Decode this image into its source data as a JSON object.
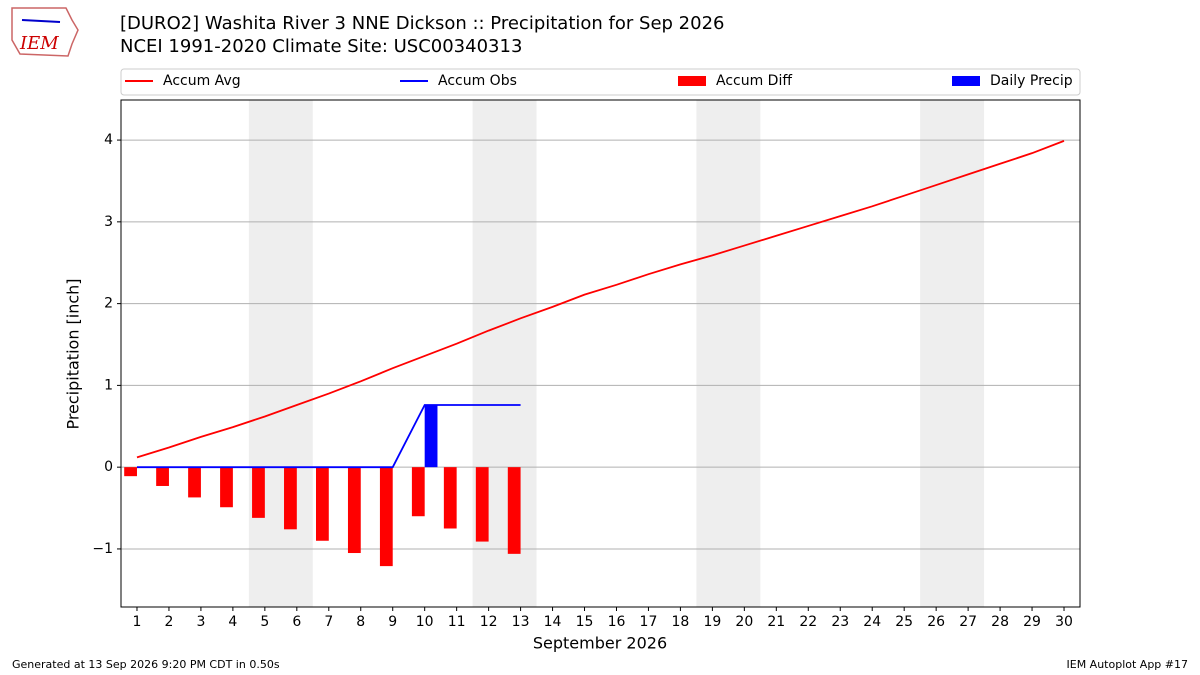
{
  "logo": "IEM",
  "footer": {
    "left": "Generated at 13 Sep 2026 9:20 PM CDT in 0.50s",
    "right": "IEM Autoplot App #17"
  },
  "chart_data": {
    "type": "line",
    "title": "[DURO2] Washita River 3 NNE Dickson :: Precipitation for Sep 2026",
    "subtitle": "NCEI 1991-2020 Climate Site: USC00340313",
    "x_label": "September 2026",
    "y_label": "Precipitation [inch]",
    "x": [
      1,
      2,
      3,
      4,
      5,
      6,
      7,
      8,
      9,
      10,
      11,
      12,
      13,
      14,
      15,
      16,
      17,
      18,
      19,
      20,
      21,
      22,
      23,
      24,
      25,
      26,
      27,
      28,
      29,
      30
    ],
    "series": [
      {
        "name": "Accum Avg",
        "kind": "line",
        "color": "#ff0000",
        "values": [
          0.12,
          0.24,
          0.37,
          0.49,
          0.62,
          0.76,
          0.9,
          1.05,
          1.21,
          1.36,
          1.51,
          1.67,
          1.82,
          1.96,
          2.11,
          2.23,
          2.36,
          2.48,
          2.59,
          2.71,
          2.83,
          2.95,
          3.07,
          3.19,
          3.32,
          3.45,
          3.58,
          3.71,
          3.84,
          3.99
        ]
      },
      {
        "name": "Accum Obs",
        "kind": "line",
        "color": "#0000ff",
        "values": [
          0,
          0,
          0,
          0,
          0,
          0,
          0,
          0,
          0,
          0.76,
          0.76,
          0.76,
          0.76,
          null,
          null,
          null,
          null,
          null,
          null,
          null,
          null,
          null,
          null,
          null,
          null,
          null,
          null,
          null,
          null,
          null
        ]
      },
      {
        "name": "Accum Diff",
        "kind": "bar",
        "color": "#ff0000",
        "values": [
          -0.11,
          -0.23,
          -0.37,
          -0.49,
          -0.62,
          -0.76,
          -0.9,
          -1.05,
          -1.21,
          -0.6,
          -0.75,
          -0.91,
          -1.06,
          null,
          null,
          null,
          null,
          null,
          null,
          null,
          null,
          null,
          null,
          null,
          null,
          null,
          null,
          null,
          null,
          null
        ]
      },
      {
        "name": "Daily Precip",
        "kind": "bar",
        "color": "#0000ff",
        "values": [
          0,
          0,
          0,
          0,
          0,
          0,
          0,
          0,
          0,
          0.76,
          0,
          0,
          0,
          null,
          null,
          null,
          null,
          null,
          null,
          null,
          null,
          null,
          null,
          null,
          null,
          null,
          null,
          null,
          null,
          null
        ]
      }
    ],
    "shaded_spans": [
      [
        4.5,
        6.5
      ],
      [
        11.5,
        13.5
      ],
      [
        18.5,
        20.5
      ],
      [
        25.5,
        27.5
      ]
    ],
    "xlim": [
      0.5,
      30.5
    ],
    "ylim": [
      -1.71,
      4.49
    ],
    "xticks": [
      1,
      2,
      3,
      4,
      5,
      6,
      7,
      8,
      9,
      10,
      11,
      12,
      13,
      14,
      15,
      16,
      17,
      18,
      19,
      20,
      21,
      22,
      23,
      24,
      25,
      26,
      27,
      28,
      29,
      30
    ],
    "yticks": [
      {
        "value": -1,
        "label": "−1"
      },
      0,
      1,
      2,
      3,
      4
    ],
    "grid": true,
    "legend": "top"
  }
}
